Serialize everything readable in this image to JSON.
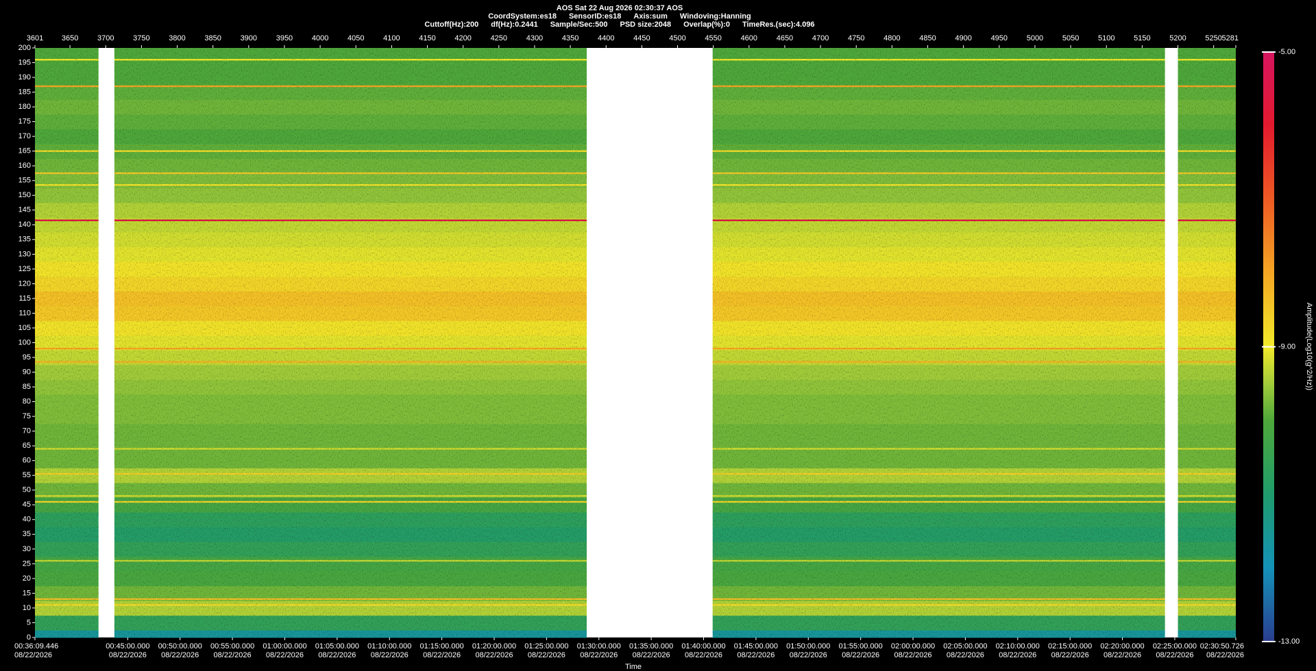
{
  "chart_data": {
    "type": "spectrogram",
    "title": "AOS  Sat 22 Aug 2026 02:30:37  AOS",
    "info": [
      [
        "CoordSystem:es18",
        "SensorID:es18",
        "Axis:sum",
        "Windoving:Hanning"
      ],
      [
        "Cuttoff(Hz):200",
        "df(Hz):0.2441",
        "Sample/Sec:500",
        "PSD size:2048",
        "Overlap(%):0",
        "TimeRes.(sec):4.096"
      ]
    ],
    "x_label": "Time",
    "colorbar_label": "Amplitude(Log10(g^2/Hz))",
    "xlim": [
      3601,
      5281
    ],
    "xticks": [
      3601,
      3650,
      3700,
      3750,
      3800,
      3850,
      3900,
      3950,
      4000,
      4050,
      4100,
      4150,
      4200,
      4250,
      4300,
      4350,
      4400,
      4450,
      4500,
      4550,
      4600,
      4650,
      4700,
      4750,
      4800,
      4850,
      4900,
      4950,
      5000,
      5050,
      5100,
      5150,
      5200,
      5250,
      5281
    ],
    "date": "08/22/2026",
    "x2ticks": [
      {
        "value": 3601,
        "label": "00:36:09.446"
      },
      {
        "value": 3730.77,
        "label": "00:45:00.000"
      },
      {
        "value": 3804.01,
        "label": "00:50:00.000"
      },
      {
        "value": 3877.25,
        "label": "00:55:00.000"
      },
      {
        "value": 3950.49,
        "label": "01:00:00.000"
      },
      {
        "value": 4023.74,
        "label": "01:05:00.000"
      },
      {
        "value": 4096.98,
        "label": "01:10:00.000"
      },
      {
        "value": 4170.22,
        "label": "01:15:00.000"
      },
      {
        "value": 4243.46,
        "label": "01:20:00.000"
      },
      {
        "value": 4316.7,
        "label": "01:25:00.000"
      },
      {
        "value": 4389.94,
        "label": "01:30:00.000"
      },
      {
        "value": 4463.18,
        "label": "01:35:00.000"
      },
      {
        "value": 4536.42,
        "label": "01:40:00.000"
      },
      {
        "value": 4609.67,
        "label": "01:45:00.000"
      },
      {
        "value": 4682.91,
        "label": "01:50:00.000"
      },
      {
        "value": 4756.15,
        "label": "01:55:00.000"
      },
      {
        "value": 4829.39,
        "label": "02:00:00.000"
      },
      {
        "value": 4902.63,
        "label": "02:05:00.000"
      },
      {
        "value": 4975.87,
        "label": "02:10:00.000"
      },
      {
        "value": 5049.11,
        "label": "02:15:00.000"
      },
      {
        "value": 5122.35,
        "label": "02:20:00.000"
      },
      {
        "value": 5195.6,
        "label": "02:25:00.000"
      },
      {
        "value": 5281,
        "label": "02:30:50.726"
      }
    ],
    "ylim": [
      0,
      200
    ],
    "yticks": [
      0,
      5,
      10,
      15,
      20,
      25,
      30,
      35,
      40,
      45,
      50,
      55,
      60,
      65,
      70,
      75,
      80,
      85,
      90,
      95,
      100,
      105,
      110,
      115,
      120,
      125,
      130,
      135,
      140,
      145,
      150,
      155,
      160,
      165,
      170,
      175,
      180,
      185,
      190,
      195,
      200
    ],
    "y": [
      0,
      5,
      10,
      15,
      20,
      25,
      30,
      35,
      40,
      45,
      50,
      55,
      60,
      65,
      70,
      75,
      80,
      85,
      90,
      95,
      100,
      105,
      110,
      115,
      120,
      125,
      130,
      135,
      140,
      145,
      150,
      155,
      160,
      165,
      170,
      175,
      180,
      185,
      190,
      195,
      200
    ],
    "values": [
      -11.6,
      -10.6,
      -9.4,
      -9.8,
      -10.1,
      -10.2,
      -10.6,
      -10.9,
      -10.7,
      -10.2,
      -9.8,
      -9.4,
      -9.8,
      -9.8,
      -9.8,
      -9.7,
      -9.7,
      -9.6,
      -9.5,
      -9.3,
      -9.1,
      -8.9,
      -8.5,
      -8.4,
      -8.7,
      -8.9,
      -9.1,
      -9.2,
      -9.3,
      -9.4,
      -9.6,
      -9.7,
      -9.8,
      -9.9,
      -10.0,
      -9.9,
      -9.8,
      -9.9,
      -10.0,
      -10.0,
      -10.0
    ],
    "lines": {
      "y": [
        141.5,
        187,
        98,
        93.5,
        157.5,
        165,
        153.5,
        55.5,
        46,
        48,
        13,
        11,
        119.5,
        196,
        64,
        26
      ],
      "values": [
        -5.6,
        -8.0,
        -8.0,
        -8.2,
        -8.5,
        -8.8,
        -8.9,
        -8.6,
        -8.7,
        -9.2,
        -8.4,
        -8.8,
        -8.7,
        -9.0,
        -9.2,
        -9.3
      ]
    },
    "gaps": [
      [
        3690,
        3712
      ],
      [
        4373,
        4549
      ],
      [
        5182,
        5200
      ]
    ],
    "zlim": [
      -13,
      -5
    ],
    "zticks": [
      {
        "value": -13,
        "label": "-13.00"
      },
      {
        "value": -9,
        "label": "-9.00"
      },
      {
        "value": -5,
        "label": "-5.00"
      }
    ],
    "colormap": [
      {
        "value": -13,
        "color": "#2a3d8f"
      },
      {
        "value": -12,
        "color": "#1492b8"
      },
      {
        "value": -11,
        "color": "#1f9c6c"
      },
      {
        "value": -10,
        "color": "#4ea83a"
      },
      {
        "value": -9.5,
        "color": "#a2cc3a"
      },
      {
        "value": -9,
        "color": "#f2ea2a"
      },
      {
        "value": -8,
        "color": "#f5a623"
      },
      {
        "value": -7,
        "color": "#ee5a24"
      },
      {
        "value": -6,
        "color": "#e31a2e"
      },
      {
        "value": -5,
        "color": "#d6155e"
      }
    ]
  }
}
